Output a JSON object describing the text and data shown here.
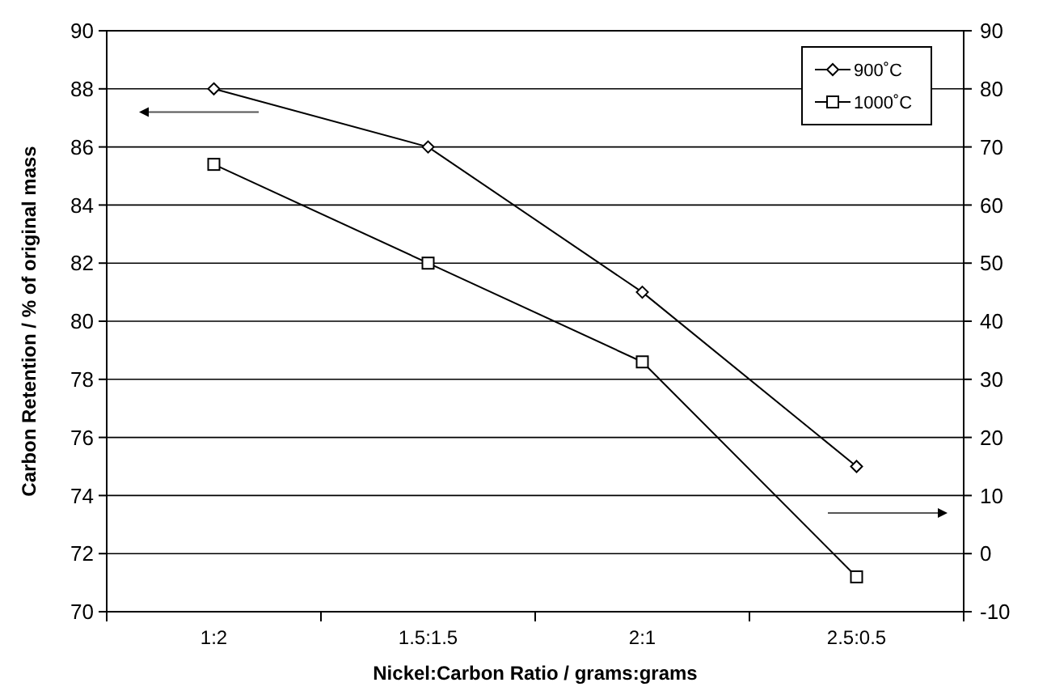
{
  "chart_data": {
    "type": "line",
    "xlabel": "Nickel:Carbon Ratio / grams:grams",
    "ylabel": "Carbon Retention / % of original mass",
    "categories": [
      "1:2",
      "1.5:1.5",
      "2:1",
      "2.5:0.5"
    ],
    "series": [
      {
        "name": "900˚C",
        "color": "#000000",
        "values": [
          88,
          86,
          81,
          75
        ],
        "marker": "diamond"
      },
      {
        "name": "1000˚C",
        "color": "#000000",
        "values": [
          67,
          50,
          33,
          -4
        ],
        "marker": "square",
        "axis": "y2"
      }
    ],
    "ylim": [
      70,
      90
    ],
    "yticks": [
      70,
      72,
      74,
      76,
      78,
      80,
      82,
      84,
      86,
      88,
      90
    ],
    "y2lim": [
      -10,
      90
    ],
    "y2ticks": [
      -10,
      0,
      10,
      20,
      30,
      40,
      50,
      60,
      70,
      80,
      90
    ],
    "grid": "y",
    "legend": "top right",
    "line_style": "solid"
  }
}
